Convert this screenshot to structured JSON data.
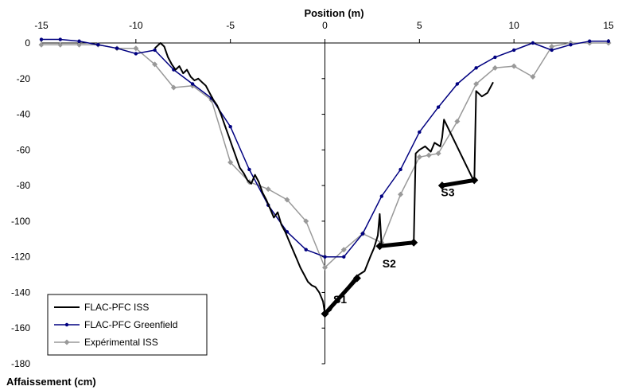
{
  "chart_data": {
    "type": "line",
    "xlabel": "Position (m)",
    "ylabel": "Affaissement (cm)",
    "xlim": [
      -15,
      15
    ],
    "ylim": [
      -180,
      0
    ],
    "x_ticks": [
      -15,
      -10,
      -5,
      0,
      5,
      10,
      15
    ],
    "y_ticks": [
      0,
      -20,
      -40,
      -60,
      -80,
      -100,
      -120,
      -140,
      -160,
      -180
    ],
    "grid": false,
    "legend_position": "bottom-left",
    "series": [
      {
        "name": "FLAC-PFC ISS",
        "color": "#000000",
        "marker": "none",
        "x": [
          -9.0,
          -8.7,
          -8.5,
          -8.3,
          -8.1,
          -7.9,
          -7.7,
          -7.5,
          -7.3,
          -7.1,
          -6.9,
          -6.7,
          -6.5,
          -6.3,
          -6.1,
          -5.9,
          -5.7,
          -5.5,
          -5.3,
          -5.1,
          -4.9,
          -4.7,
          -4.5,
          -4.3,
          -4.1,
          -3.9,
          -3.7,
          -3.5,
          -3.3,
          -3.1,
          -2.9,
          -2.7,
          -2.5,
          -2.3,
          -2.1,
          -1.9,
          -1.7,
          -1.5,
          -1.3,
          -1.1,
          -0.9,
          -0.7,
          -0.5,
          -0.3,
          -0.1,
          0.0,
          0.3,
          0.6,
          0.9,
          1.2,
          1.5,
          1.8,
          2.1,
          2.4,
          2.6,
          2.8,
          2.9,
          3.0,
          4.7,
          4.8,
          5.0,
          5.3,
          5.6,
          5.8,
          6.1,
          6.2,
          6.3,
          7.9,
          8.0,
          8.3,
          8.6,
          8.9
        ],
        "y": [
          -3,
          0,
          -2,
          -8,
          -12,
          -15,
          -13,
          -17,
          -15,
          -19,
          -21,
          -20,
          -22,
          -24,
          -28,
          -32,
          -35,
          -40,
          -46,
          -52,
          -58,
          -64,
          -70,
          -73,
          -77,
          -79,
          -74,
          -78,
          -84,
          -88,
          -93,
          -98,
          -95,
          -102,
          -106,
          -111,
          -116,
          -121,
          -126,
          -130,
          -134,
          -136,
          -137,
          -140,
          -145,
          -152,
          -150,
          -144,
          -141,
          -137,
          -133,
          -130,
          -128,
          -120,
          -115,
          -108,
          -96,
          -114,
          -112,
          -62,
          -60,
          -58,
          -61,
          -56,
          -58,
          -53,
          -43,
          -78,
          -27,
          -30,
          -28,
          -22
        ]
      },
      {
        "name": "FLAC-PFC Greenfield",
        "color": "#000080",
        "marker": "dot",
        "x": [
          -15,
          -14,
          -13,
          -12,
          -11,
          -10,
          -9,
          -8,
          -7,
          -6,
          -5,
          -4,
          -3,
          -2,
          -1,
          0,
          1,
          2,
          3,
          4,
          5,
          6,
          7,
          8,
          9,
          10,
          11,
          12,
          13,
          14,
          15
        ],
        "y": [
          2,
          2,
          1,
          -1,
          -3,
          -6,
          -4,
          -15,
          -23,
          -31,
          -47,
          -71,
          -91,
          -106,
          -116,
          -120,
          -120,
          -107,
          -86,
          -71,
          -50,
          -36,
          -23,
          -14,
          -8,
          -4,
          0,
          -4,
          -1,
          1,
          1
        ]
      },
      {
        "name": "Expérimental ISS",
        "color": "#999999",
        "marker": "diamond",
        "x": [
          -15,
          -14,
          -13,
          -12,
          -11,
          -10,
          -9,
          -8,
          -7,
          -6,
          -5,
          -4,
          -3,
          -2,
          -1,
          0,
          1,
          2,
          3,
          4,
          5,
          5.5,
          6,
          7,
          8,
          9,
          10,
          11,
          12,
          13,
          14,
          15
        ],
        "y": [
          -1,
          -1,
          -1,
          -1,
          -3,
          -3,
          -12,
          -25,
          -24,
          -32,
          -67,
          -78,
          -82,
          -88,
          -100,
          -126,
          -116,
          -107,
          -112,
          -85,
          -64,
          -63,
          -62,
          -44,
          -23,
          -14,
          -13,
          -19,
          -2,
          0,
          0,
          0
        ]
      }
    ],
    "annotations": [
      {
        "text": "S1",
        "x": 0.8,
        "y": -146
      },
      {
        "text": "S2",
        "x": 3.4,
        "y": -126
      },
      {
        "text": "S3",
        "x": 6.5,
        "y": -86
      }
    ],
    "thick_segments": [
      {
        "x": [
          0.0,
          1.7
        ],
        "y": [
          -152,
          -132
        ]
      },
      {
        "x": [
          2.9,
          4.7
        ],
        "y": [
          -114,
          -112
        ]
      },
      {
        "x": [
          6.2,
          7.9
        ],
        "y": [
          -80,
          -77
        ]
      }
    ]
  }
}
